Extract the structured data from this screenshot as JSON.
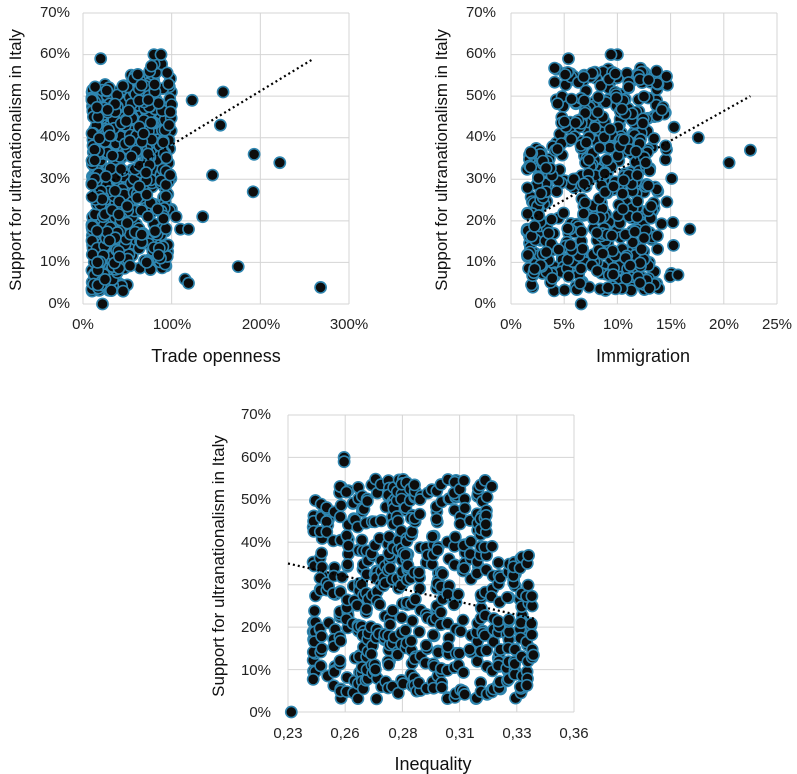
{
  "colors": {
    "point_fill": "#0d0d0d",
    "point_stroke": "#2f86b0",
    "grid": "#d4d4d4",
    "trend": "#000000"
  },
  "chart_data": [
    {
      "type": "scatter",
      "xlabel": "Trade openness",
      "ylabel": "Support for ultranationalism in Italy",
      "xlim": [
        0,
        3
      ],
      "ylim": [
        0,
        0.7
      ],
      "xticks": [
        "0%",
        "100%",
        "200%",
        "300%"
      ],
      "yticks": [
        "0%",
        "10%",
        "20%",
        "30%",
        "40%",
        "50%",
        "60%",
        "70%"
      ],
      "grid": true,
      "trendline": {
        "x": [
          0.05,
          2.6
        ],
        "y": [
          0.26,
          0.59
        ]
      },
      "points_summary": "dense cloud between 0% and 100% trade openness, outliers up to ~270%",
      "outliers": [
        [
          0.2,
          0.59
        ],
        [
          1.23,
          0.49
        ],
        [
          1.55,
          0.43
        ],
        [
          1.58,
          0.51
        ],
        [
          1.46,
          0.31
        ],
        [
          1.93,
          0.36
        ],
        [
          2.22,
          0.34
        ],
        [
          1.92,
          0.27
        ],
        [
          1.35,
          0.21
        ],
        [
          1.05,
          0.21
        ],
        [
          1.1,
          0.18
        ],
        [
          1.19,
          0.18
        ],
        [
          1.15,
          0.06
        ],
        [
          1.19,
          0.05
        ],
        [
          1.75,
          0.09
        ],
        [
          2.68,
          0.04
        ],
        [
          0.8,
          0.6
        ],
        [
          0.88,
          0.6
        ],
        [
          0.22,
          0.0
        ]
      ]
    },
    {
      "type": "scatter",
      "xlabel": "Immigration",
      "ylabel": "Support for ultranationalism in Italy",
      "xlim": [
        0,
        0.25
      ],
      "ylim": [
        0,
        0.7
      ],
      "xticks": [
        "0%",
        "5%",
        "10%",
        "15%",
        "20%",
        "25%"
      ],
      "yticks": [
        "0%",
        "10%",
        "20%",
        "30%",
        "40%",
        "50%",
        "60%",
        "70%"
      ],
      "grid": true,
      "trendline": {
        "x": [
          0.015,
          0.225
        ],
        "y": [
          0.2,
          0.5
        ]
      },
      "points_summary": "cloud between 2% and 15% immigration",
      "outliers": [
        [
          0.176,
          0.4
        ],
        [
          0.205,
          0.34
        ],
        [
          0.225,
          0.37
        ],
        [
          0.168,
          0.18
        ],
        [
          0.157,
          0.07
        ],
        [
          0.054,
          0.59
        ],
        [
          0.1,
          0.6
        ],
        [
          0.094,
          0.6
        ],
        [
          0.066,
          0.0
        ]
      ]
    },
    {
      "type": "scatter",
      "xlabel": "Inequality",
      "ylabel": "Support for ultranationalism in Italy",
      "xlim": [
        0.23,
        0.36
      ],
      "ylim": [
        0,
        0.7
      ],
      "xticks": [
        "0,23",
        "0,26",
        "0,28",
        "0,31",
        "0,33",
        "0,36"
      ],
      "yticks": [
        "0%",
        "10%",
        "20%",
        "30%",
        "40%",
        "50%",
        "60%",
        "70%"
      ],
      "grid": true,
      "trendline": {
        "x": [
          0.23,
          0.342
        ],
        "y": [
          0.35,
          0.22
        ]
      },
      "points_summary": "vertical strips of points at discrete inequality values between 0,24 and 0,34",
      "outliers": [
        [
          0.2315,
          0.0
        ],
        [
          0.2555,
          0.6
        ],
        [
          0.2555,
          0.59
        ]
      ]
    }
  ]
}
